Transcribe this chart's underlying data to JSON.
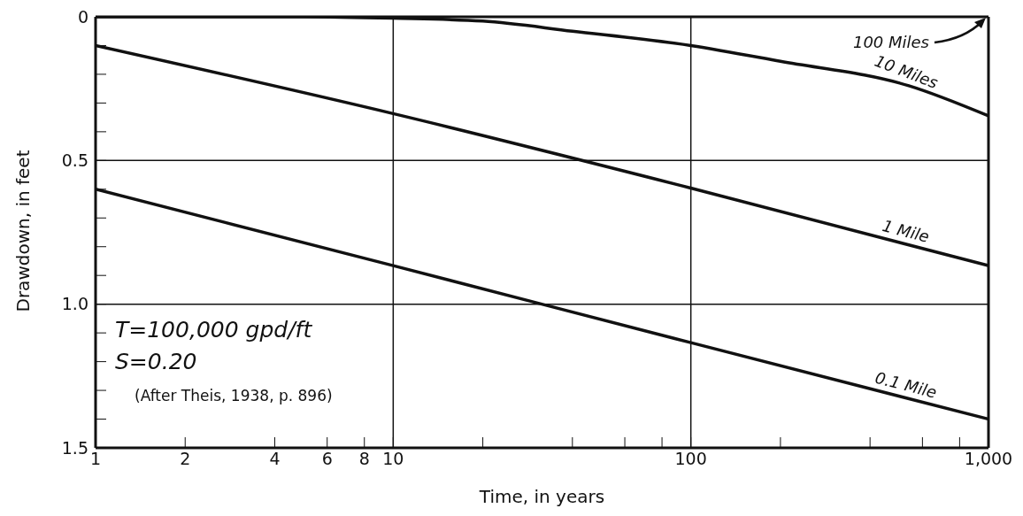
{
  "chart_data": {
    "type": "line",
    "xlabel": "Time, in years",
    "ylabel": "Drawdown, in feet",
    "log": "x",
    "marker": "none",
    "line_style": "solid",
    "xlim": [
      1,
      1000
    ],
    "ylim": [
      1.5,
      0
    ],
    "xticks": [
      1,
      2,
      4,
      6,
      8,
      10,
      {
        "value": 20,
        "label": null
      },
      {
        "value": 40,
        "label": null
      },
      {
        "value": 60,
        "label": null
      },
      {
        "value": 80,
        "label": null
      },
      100,
      {
        "value": 200,
        "label": null
      },
      {
        "value": 400,
        "label": null
      },
      {
        "value": 600,
        "label": null
      },
      {
        "value": 800,
        "label": null
      },
      {
        "value": 1000,
        "label": "1,000"
      }
    ],
    "yticks": [
      0,
      {
        "value": 0.1,
        "label": null
      },
      {
        "value": 0.2,
        "label": null
      },
      {
        "value": 0.3,
        "label": null
      },
      {
        "value": 0.4,
        "label": null
      },
      0.5,
      {
        "value": 0.6,
        "label": null
      },
      {
        "value": 0.7,
        "label": null
      },
      {
        "value": 0.8,
        "label": null
      },
      {
        "value": 0.9,
        "label": null
      },
      {
        "value": 1,
        "label": "1.0"
      },
      {
        "value": 1.1,
        "label": null
      },
      {
        "value": 1.2,
        "label": null
      },
      {
        "value": 1.3,
        "label": null
      },
      {
        "value": 1.4,
        "label": null
      },
      1.5
    ],
    "series": [
      {
        "name": "10 Miles",
        "color": "#111111",
        "x": [
          1,
          5,
          10,
          20,
          40,
          100,
          200,
          540,
          1000
        ],
        "values": [
          0,
          0,
          0.005,
          0.015,
          0.05,
          0.1,
          0.155,
          0.24,
          0.345
        ]
      },
      {
        "name": "1 Mile",
        "color": "#111111",
        "x": [
          1,
          10,
          100,
          1000
        ],
        "values": [
          0.1,
          0.337,
          0.596,
          0.866
        ]
      },
      {
        "name": "0.1 Mile",
        "color": "#111111",
        "x": [
          1,
          10,
          100,
          1000
        ],
        "values": [
          0.6,
          0.866,
          1.134,
          1.4
        ]
      }
    ],
    "ref_lines": [
      {
        "axis": "x",
        "value": 10,
        "color": "#111111"
      },
      {
        "axis": "x",
        "value": 100,
        "color": "#111111"
      },
      {
        "axis": "y",
        "value": 0.5,
        "color": "#111111"
      },
      {
        "axis": "y",
        "value": 1,
        "color": "#111111"
      }
    ],
    "annotations": [
      "100 Miles",
      "T=100,000 gpd/ft",
      "S=0.20",
      "(After Theis, 1938, p. 896)"
    ]
  }
}
